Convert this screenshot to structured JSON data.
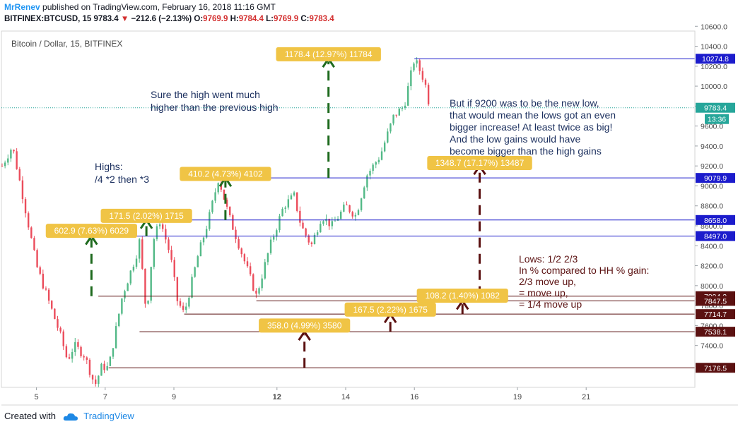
{
  "header": {
    "author": "MrRenev",
    "published": "published on TradingView.com, February 16, 2018 11:16 GMT",
    "symbol": "BITFINEX:BTCUSD, 15",
    "last": "9783.4",
    "change": "−212.6 (−2.13%)",
    "o_label": "O:",
    "o_value": "9769.9",
    "h_label": "H:",
    "h_value": "9784.4",
    "l_label": "L:",
    "l_value": "9769.9",
    "c_label": "C:",
    "c_value": "9783.4"
  },
  "footer": {
    "created_with": "Created with",
    "brand": "TradingView"
  },
  "colors": {
    "up_candle": "#53b987",
    "down_candle": "#eb4d5c",
    "green_arrow": "#1e6a1e",
    "brown_arrow": "#5b1111",
    "high_line": "#1c1ccc",
    "low_line": "#5b1111",
    "label_fill": "#f0c445",
    "price_badge_blue": "#1c1ccc",
    "price_badge_brown": "#5b1111",
    "last_price": "#26a69a"
  },
  "chart_data": {
    "type": "candlestick",
    "title": "Bitcoin / Dollar, 15, BITFINEX",
    "symbol": "BTCUSD",
    "interval": "15",
    "ylim": [
      7100,
      10700
    ],
    "y_ticks": [
      7400,
      7600,
      7800,
      8000,
      8200,
      8400,
      8600,
      8800,
      9000,
      9200,
      9400,
      9600,
      9800,
      10000,
      10200,
      10400,
      10600
    ],
    "y_tick_labels": [
      "7400.0",
      "7600.0",
      "7800.0",
      "8000.0",
      "8200.0",
      "8400.0",
      "8600.0",
      "8800.0",
      "9000.0",
      "9200.0",
      "9400.0",
      "9600.0",
      "9800.0",
      "10000.0",
      "10200.0",
      "10400.0",
      "10600.0"
    ],
    "x_ticks": [
      5,
      7,
      9,
      12,
      14,
      16,
      19,
      21
    ],
    "x_tick_labels": [
      "5",
      "7",
      "9",
      "12",
      "14",
      "16",
      "19",
      "21"
    ],
    "x_bold_ticks": [
      "12"
    ],
    "grid": false,
    "price_path": [
      {
        "d": 4.0,
        "p": 9200
      },
      {
        "d": 4.3,
        "p": 9400
      },
      {
        "d": 4.6,
        "p": 8900
      },
      {
        "d": 5.0,
        "p": 8200
      },
      {
        "d": 5.3,
        "p": 7900
      },
      {
        "d": 5.7,
        "p": 7500
      },
      {
        "d": 5.9,
        "p": 7250
      },
      {
        "d": 6.1,
        "p": 7400
      },
      {
        "d": 6.4,
        "p": 7300
      },
      {
        "d": 6.7,
        "p": 7000
      },
      {
        "d": 6.9,
        "p": 7190
      },
      {
        "d": 7.1,
        "p": 7176.5
      },
      {
        "d": 7.5,
        "p": 7900
      },
      {
        "d": 7.9,
        "p": 8300
      },
      {
        "d": 8.0,
        "p": 8450
      },
      {
        "d": 8.2,
        "p": 7700
      },
      {
        "d": 8.4,
        "p": 8450
      },
      {
        "d": 8.6,
        "p": 8658
      },
      {
        "d": 8.9,
        "p": 8300
      },
      {
        "d": 9.1,
        "p": 7850
      },
      {
        "d": 9.3,
        "p": 7714.7
      },
      {
        "d": 9.7,
        "p": 8300
      },
      {
        "d": 10.0,
        "p": 8650
      },
      {
        "d": 10.3,
        "p": 9079.9
      },
      {
        "d": 10.6,
        "p": 8700
      },
      {
        "d": 10.9,
        "p": 8400
      },
      {
        "d": 11.2,
        "p": 8100
      },
      {
        "d": 11.4,
        "p": 7894.2
      },
      {
        "d": 11.8,
        "p": 8400
      },
      {
        "d": 12.2,
        "p": 8800
      },
      {
        "d": 12.5,
        "p": 8900
      },
      {
        "d": 12.7,
        "p": 8600
      },
      {
        "d": 13.0,
        "p": 8400
      },
      {
        "d": 13.3,
        "p": 8700
      },
      {
        "d": 13.6,
        "p": 8600
      },
      {
        "d": 14.0,
        "p": 8800
      },
      {
        "d": 14.3,
        "p": 8700
      },
      {
        "d": 14.6,
        "p": 9100
      },
      {
        "d": 15.0,
        "p": 9300
      },
      {
        "d": 15.4,
        "p": 9700
      },
      {
        "d": 15.7,
        "p": 9800
      },
      {
        "d": 16.0,
        "p": 10274.8
      },
      {
        "d": 16.3,
        "p": 10050
      },
      {
        "d": 16.45,
        "p": 9783.4
      }
    ],
    "high_lines": [
      {
        "price": 9079.9,
        "label": "9079.9",
        "from_day": 10.3
      },
      {
        "price": 8658.0,
        "label": "8658.0",
        "from_day": 8.6
      },
      {
        "price": 8497.0,
        "label": "8497.0",
        "from_day": 7.8
      },
      {
        "price": 10274.8,
        "label": "10274.8",
        "from_day": 16.0
      }
    ],
    "low_lines": [
      {
        "price": 7894.2,
        "label": "7894.2",
        "from_day": 6.8
      },
      {
        "price": 7847.5,
        "label": "7847.5",
        "from_day": 11.4
      },
      {
        "price": 7714.7,
        "label": "7714.7",
        "from_day": 9.3
      },
      {
        "price": 7538.1,
        "label": "7538.1",
        "from_day": 8.0
      },
      {
        "price": 7176.5,
        "label": "7176.5",
        "from_day": 7.1
      }
    ],
    "last_price": {
      "price": 9783.4,
      "label": "9783.4",
      "time_label": "13:36"
    },
    "measure_labels": [
      {
        "text": "602.9 (7.63%) 6029",
        "color": "green",
        "day": 6.6,
        "price": 8550
      },
      {
        "text": "171.5 (2.02%) 1715",
        "color": "green",
        "day": 8.2,
        "price": 8700
      },
      {
        "text": "410.2 (4.73%) 4102",
        "color": "green",
        "day": 10.5,
        "price": 9120
      },
      {
        "text": "1178.4 (12.97%) 11784",
        "color": "green",
        "day": 13.5,
        "price": 10320
      },
      {
        "text": "1348.7 (17.17%) 13487",
        "color": "brown",
        "day": 17.9,
        "price": 9230
      },
      {
        "text": "108.2 (1.40%) 1082",
        "color": "brown",
        "day": 17.4,
        "price": 7900
      },
      {
        "text": "167.5 (2.22%) 1675",
        "color": "brown",
        "day": 15.3,
        "price": 7760
      },
      {
        "text": "358.0 (4.99%) 3580",
        "color": "brown",
        "day": 12.8,
        "price": 7600
      }
    ],
    "annotations": [
      "Sure the high went much",
      "higher than the previous high",
      "Highs:",
      "/4 *2 then *3",
      "But if 9200 was to be the new low,",
      "that would mean the lows got an even",
      "bigger increase! At least twice as big!",
      "And the low gains would have",
      "become bigger than the high gains",
      "Lows: 1/2 2/3",
      "In % compared to HH % gain:",
      "2/3 move up,",
      "= move up,",
      "= 1/4 move up"
    ]
  }
}
